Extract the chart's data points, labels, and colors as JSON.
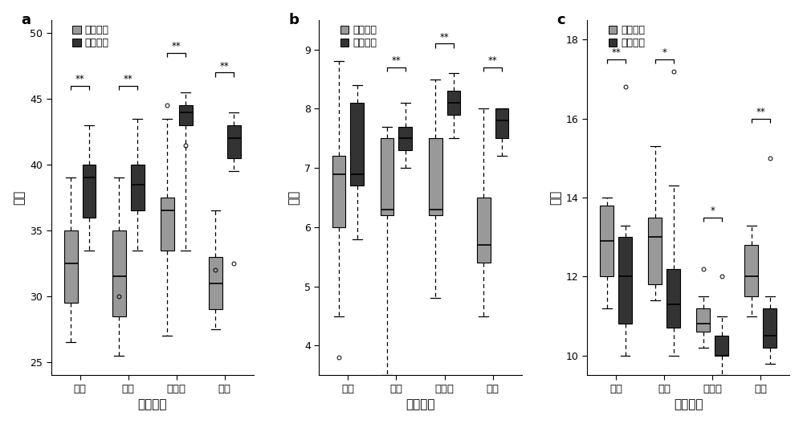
{
  "panels": [
    "a",
    "b",
    "c"
  ],
  "ylabel": [
    "衣分",
    "衣指",
    "子指"
  ],
  "xlabel": "试验地点",
  "locations": [
    "荆州",
    "九江",
    "阿拉尔",
    "安阳"
  ],
  "legend_labels": [
    "骨干亲本",
    "优异亲本"
  ],
  "colors": [
    "#999999",
    "#333333"
  ],
  "panel_a": {
    "ylim": [
      24,
      51
    ],
    "yticks": [
      25,
      30,
      35,
      40,
      45,
      50
    ],
    "data": {
      "bone": {
        "荆州": {
          "q1": 29.5,
          "q2": 32.5,
          "q3": 35.0,
          "whislo": 26.5,
          "whishi": 39.0,
          "fliers": []
        },
        "九江": {
          "q1": 28.5,
          "q2": 31.5,
          "q3": 35.0,
          "whislo": 25.5,
          "whishi": 39.0,
          "fliers": [
            30.0
          ]
        },
        "阿拉尔": {
          "q1": 33.5,
          "q2": 36.5,
          "q3": 37.5,
          "whislo": 27.0,
          "whishi": 43.5,
          "fliers": [
            44.5
          ]
        },
        "安阳": {
          "q1": 29.0,
          "q2": 31.0,
          "q3": 33.0,
          "whislo": 27.5,
          "whishi": 36.5,
          "fliers": [
            32.0
          ]
        }
      },
      "elite": {
        "荆州": {
          "q1": 36.0,
          "q2": 39.0,
          "q3": 40.0,
          "whislo": 33.5,
          "whishi": 43.0,
          "fliers": []
        },
        "九江": {
          "q1": 36.5,
          "q2": 38.5,
          "q3": 40.0,
          "whislo": 33.5,
          "whishi": 43.5,
          "fliers": []
        },
        "阿拉尔": {
          "q1": 43.0,
          "q2": 44.0,
          "q3": 44.5,
          "whislo": 33.5,
          "whishi": 45.5,
          "fliers": [
            41.5
          ]
        },
        "安阳": {
          "q1": 40.5,
          "q2": 42.0,
          "q3": 43.0,
          "whislo": 39.5,
          "whishi": 44.0,
          "fliers": [
            32.5
          ]
        }
      }
    },
    "sig_bars": [
      {
        "loc": "荆州",
        "sig": "**",
        "y": 46.0
      },
      {
        "loc": "九江",
        "sig": "**",
        "y": 46.0
      },
      {
        "loc": "阿拉尔",
        "sig": "**",
        "y": 48.5
      },
      {
        "loc": "安阳",
        "sig": "**",
        "y": 47.0
      }
    ]
  },
  "panel_b": {
    "ylim": [
      3.5,
      9.5
    ],
    "yticks": [
      4,
      5,
      6,
      7,
      8,
      9
    ],
    "data": {
      "bone": {
        "荆州": {
          "q1": 6.0,
          "q2": 6.9,
          "q3": 7.2,
          "whislo": 4.5,
          "whishi": 8.8,
          "fliers": [
            3.8
          ]
        },
        "九江": {
          "q1": 6.2,
          "q2": 6.3,
          "q3": 7.5,
          "whislo": 3.5,
          "whishi": 7.7,
          "fliers": []
        },
        "阿拉尔": {
          "q1": 6.2,
          "q2": 6.3,
          "q3": 7.5,
          "whislo": 4.8,
          "whishi": 8.5,
          "fliers": []
        },
        "安阳": {
          "q1": 5.4,
          "q2": 5.7,
          "q3": 6.5,
          "whislo": 4.5,
          "whishi": 8.0,
          "fliers": []
        }
      },
      "elite": {
        "荆州": {
          "q1": 6.7,
          "q2": 6.9,
          "q3": 8.1,
          "whislo": 5.8,
          "whishi": 8.4,
          "fliers": []
        },
        "九江": {
          "q1": 7.3,
          "q2": 7.5,
          "q3": 7.7,
          "whislo": 7.0,
          "whishi": 8.1,
          "fliers": []
        },
        "阿拉尔": {
          "q1": 7.9,
          "q2": 8.1,
          "q3": 8.3,
          "whislo": 7.5,
          "whishi": 8.6,
          "fliers": []
        },
        "安阳": {
          "q1": 7.5,
          "q2": 7.8,
          "q3": 8.0,
          "whislo": 7.2,
          "whishi": 8.0,
          "fliers": []
        }
      }
    },
    "sig_bars": [
      {
        "loc": "九江",
        "sig": "**",
        "y": 8.7
      },
      {
        "loc": "阿拉尔",
        "sig": "**",
        "y": 9.1
      },
      {
        "loc": "安阳",
        "sig": "**",
        "y": 8.7
      }
    ]
  },
  "panel_c": {
    "ylim": [
      9.5,
      18.5
    ],
    "yticks": [
      10,
      12,
      14,
      16,
      18
    ],
    "data": {
      "bone": {
        "荆州": {
          "q1": 12.0,
          "q2": 12.9,
          "q3": 13.8,
          "whislo": 11.2,
          "whishi": 14.0,
          "fliers": []
        },
        "九江": {
          "q1": 11.8,
          "q2": 13.0,
          "q3": 13.5,
          "whislo": 11.4,
          "whishi": 15.3,
          "fliers": []
        },
        "阿拉尔": {
          "q1": 10.6,
          "q2": 10.8,
          "q3": 11.2,
          "whislo": 10.2,
          "whishi": 11.5,
          "fliers": [
            12.2
          ]
        },
        "安阳": {
          "q1": 11.5,
          "q2": 12.0,
          "q3": 12.8,
          "whislo": 11.0,
          "whishi": 13.3,
          "fliers": []
        }
      },
      "elite": {
        "荆州": {
          "q1": 10.8,
          "q2": 12.0,
          "q3": 13.0,
          "whislo": 10.0,
          "whishi": 13.3,
          "fliers": [
            16.8
          ]
        },
        "九江": {
          "q1": 10.7,
          "q2": 11.3,
          "q3": 12.2,
          "whislo": 10.0,
          "whishi": 14.3,
          "fliers": [
            17.2
          ]
        },
        "阿拉尔": {
          "q1": 10.0,
          "q2": 10.0,
          "q3": 10.5,
          "whislo": 9.5,
          "whishi": 11.0,
          "fliers": [
            12.0
          ]
        },
        "安阳": {
          "q1": 10.2,
          "q2": 10.5,
          "q3": 11.2,
          "whislo": 9.8,
          "whishi": 11.5,
          "fliers": [
            15.0
          ]
        }
      }
    },
    "sig_bars": [
      {
        "loc": "荆州",
        "sig": "**",
        "y": 17.5
      },
      {
        "loc": "九江",
        "sig": "*",
        "y": 17.5
      },
      {
        "loc": "阿拉尔",
        "sig": "*",
        "y": 13.5
      },
      {
        "loc": "安阳",
        "sig": "**",
        "y": 16.0
      }
    ]
  }
}
